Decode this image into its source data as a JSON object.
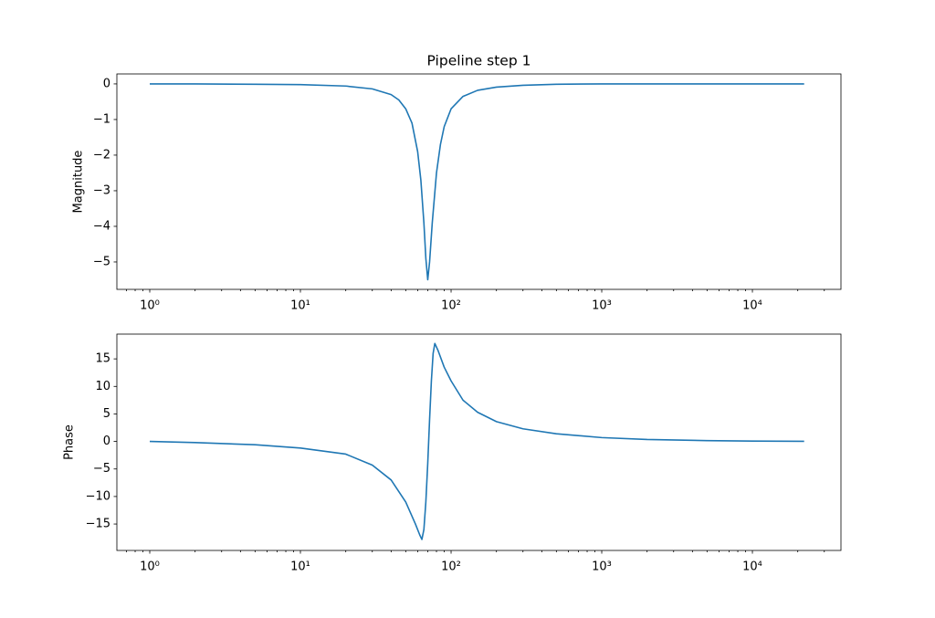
{
  "chart_data": [
    {
      "type": "line",
      "title": "Pipeline step 1",
      "ylabel": "Magnitude",
      "xscale": "log",
      "x": [
        1,
        2,
        5,
        10,
        20,
        30,
        40,
        45,
        50,
        55,
        60,
        63,
        66,
        68,
        70,
        72,
        75,
        80,
        85,
        90,
        100,
        120,
        150,
        200,
        300,
        500,
        1000,
        2000,
        5000,
        10000,
        22050
      ],
      "series": [
        {
          "color": "#1f77b4",
          "values": [
            0,
            0,
            -0.01,
            -0.02,
            -0.06,
            -0.14,
            -0.3,
            -0.45,
            -0.7,
            -1.1,
            -1.9,
            -2.7,
            -3.9,
            -4.9,
            -5.5,
            -5.0,
            -3.9,
            -2.5,
            -1.7,
            -1.2,
            -0.7,
            -0.35,
            -0.18,
            -0.09,
            -0.04,
            -0.01,
            0,
            0,
            0,
            0,
            0
          ]
        }
      ],
      "xlim": [
        0.605,
        38700
      ],
      "ylim": [
        -5.77,
        0.28
      ],
      "xticks": [
        {
          "value": 1,
          "label": "10⁰"
        },
        {
          "value": 10,
          "label": "10¹"
        },
        {
          "value": 100,
          "label": "10²"
        },
        {
          "value": 1000,
          "label": "10³"
        },
        {
          "value": 10000,
          "label": "10⁴"
        }
      ],
      "xminorticks": [
        0.7,
        0.8,
        0.9,
        2,
        3,
        4,
        5,
        6,
        7,
        8,
        9,
        20,
        30,
        40,
        50,
        60,
        70,
        80,
        90,
        200,
        300,
        400,
        500,
        600,
        700,
        800,
        900,
        2000,
        3000,
        4000,
        5000,
        6000,
        7000,
        8000,
        9000,
        20000,
        30000
      ],
      "yticks": [
        0,
        {
          "value": -1,
          "label": "−1"
        },
        {
          "value": -2,
          "label": "−2"
        },
        {
          "value": -3,
          "label": "−3"
        },
        {
          "value": -4,
          "label": "−4"
        },
        {
          "value": -5,
          "label": "−5"
        }
      ]
    },
    {
      "type": "line",
      "ylabel": "Phase",
      "xscale": "log",
      "x": [
        1,
        2,
        5,
        10,
        20,
        30,
        40,
        50,
        58,
        62,
        64,
        66,
        68,
        70,
        72,
        74,
        76,
        78,
        82,
        90,
        100,
        120,
        150,
        200,
        300,
        500,
        1000,
        2000,
        5000,
        10000,
        22050
      ],
      "series": [
        {
          "color": "#1f77b4",
          "values": [
            0,
            -0.2,
            -0.6,
            -1.2,
            -2.3,
            -4.3,
            -7,
            -11,
            -15,
            -17,
            -17.8,
            -16,
            -11,
            -4,
            4,
            11,
            16,
            17.8,
            16.5,
            13.5,
            11,
            7.5,
            5.3,
            3.6,
            2.3,
            1.4,
            0.7,
            0.35,
            0.15,
            0.07,
            0.03
          ]
        }
      ],
      "xlim": [
        0.605,
        38700
      ],
      "ylim": [
        -19.8,
        19.5
      ],
      "xticks": [
        {
          "value": 1,
          "label": "10⁰"
        },
        {
          "value": 10,
          "label": "10¹"
        },
        {
          "value": 100,
          "label": "10²"
        },
        {
          "value": 1000,
          "label": "10³"
        },
        {
          "value": 10000,
          "label": "10⁴"
        }
      ],
      "xminorticks": [
        0.7,
        0.8,
        0.9,
        2,
        3,
        4,
        5,
        6,
        7,
        8,
        9,
        20,
        30,
        40,
        50,
        60,
        70,
        80,
        90,
        200,
        300,
        400,
        500,
        600,
        700,
        800,
        900,
        2000,
        3000,
        4000,
        5000,
        6000,
        7000,
        8000,
        9000,
        20000,
        30000
      ],
      "yticks": [
        {
          "value": -15,
          "label": "−15"
        },
        {
          "value": -10,
          "label": "−10"
        },
        {
          "value": -5,
          "label": "−5"
        },
        0,
        5,
        10,
        15
      ]
    }
  ]
}
